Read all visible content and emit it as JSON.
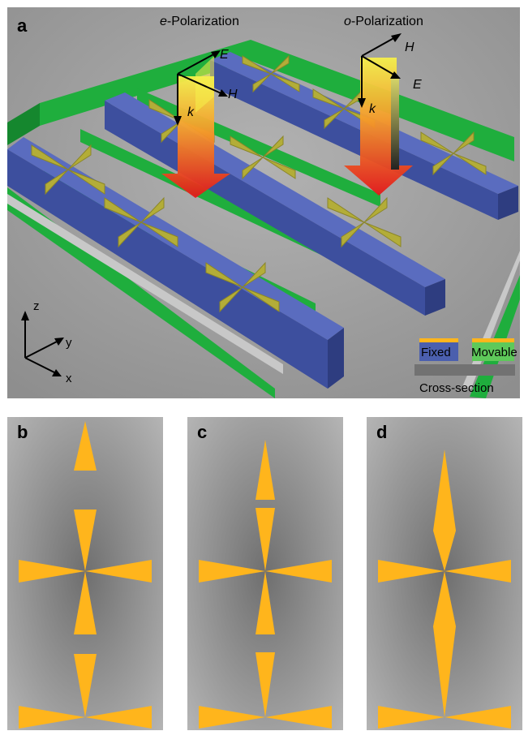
{
  "figure": {
    "panel_a": {
      "label": "a",
      "e_pol_italic": "e",
      "e_pol_rest": "-Polarization",
      "o_pol_italic": "o",
      "o_pol_rest": "-Polarization",
      "field_E": "E",
      "field_H": "H",
      "wavevector": "k",
      "axis_x": "x",
      "axis_y": "y",
      "axis_z": "z",
      "legend_fixed": "Fixed",
      "legend_movable": "Movable",
      "legend_cross_section": "Cross-section"
    },
    "panel_b": {
      "label": "b"
    },
    "panel_c": {
      "label": "c"
    },
    "panel_d": {
      "label": "d"
    }
  },
  "colors": {
    "background_a": "#999999",
    "frame_green": "#1cab3a",
    "beam_blue": "#4b5fae",
    "gold": "#b3ad38",
    "orange_gold": "#ffb51c",
    "panel_gray": "#9e9e9e",
    "arrow_red": "#e41a1a"
  }
}
